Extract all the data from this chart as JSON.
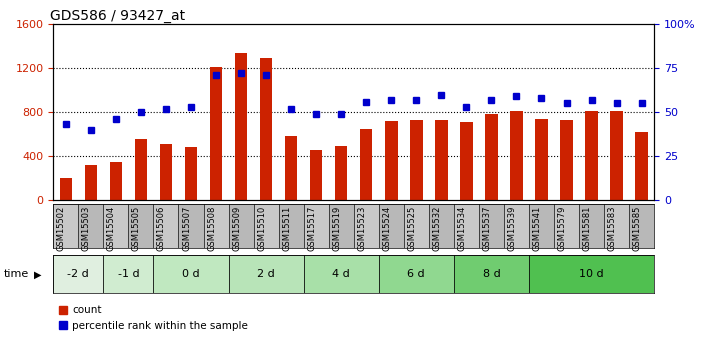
{
  "title": "GDS586 / 93427_at",
  "samples": [
    "GSM15502",
    "GSM15503",
    "GSM15504",
    "GSM15505",
    "GSM15506",
    "GSM15507",
    "GSM15508",
    "GSM15509",
    "GSM15510",
    "GSM15511",
    "GSM15517",
    "GSM15519",
    "GSM15523",
    "GSM15524",
    "GSM15525",
    "GSM15532",
    "GSM15534",
    "GSM15537",
    "GSM15539",
    "GSM15541",
    "GSM15579",
    "GSM15581",
    "GSM15583",
    "GSM15585"
  ],
  "counts": [
    200,
    320,
    350,
    560,
    510,
    480,
    1210,
    1340,
    1290,
    580,
    460,
    490,
    650,
    720,
    730,
    730,
    710,
    780,
    810,
    740,
    730,
    810,
    810,
    620
  ],
  "percentiles": [
    43,
    40,
    46,
    50,
    52,
    53,
    71,
    72,
    71,
    52,
    49,
    49,
    56,
    57,
    57,
    60,
    53,
    57,
    59,
    58,
    55,
    57,
    55,
    55
  ],
  "time_groups": [
    {
      "label": "-2 d",
      "start": 0,
      "end": 2,
      "color": "#e0efe0"
    },
    {
      "label": "-1 d",
      "start": 2,
      "end": 4,
      "color": "#d0ecd0"
    },
    {
      "label": "0 d",
      "start": 4,
      "end": 7,
      "color": "#c0e8c0"
    },
    {
      "label": "2 d",
      "start": 7,
      "end": 10,
      "color": "#b8e4b8"
    },
    {
      "label": "4 d",
      "start": 10,
      "end": 13,
      "color": "#a8e0a8"
    },
    {
      "label": "6 d",
      "start": 13,
      "end": 16,
      "color": "#90d890"
    },
    {
      "label": "8 d",
      "start": 16,
      "end": 19,
      "color": "#70cc70"
    },
    {
      "label": "10 d",
      "start": 19,
      "end": 24,
      "color": "#50c050"
    }
  ],
  "bar_color": "#cc2200",
  "dot_color": "#0000cc",
  "ylim_left": [
    0,
    1600
  ],
  "ylim_right": [
    0,
    100
  ],
  "yticks_left": [
    0,
    400,
    800,
    1200,
    1600
  ],
  "ytick_labels_left": [
    "0",
    "400",
    "800",
    "1200",
    "1600"
  ],
  "yticks_right": [
    0,
    25,
    50,
    75,
    100
  ],
  "ytick_labels_right": [
    "0",
    "25",
    "50",
    "75",
    "100%"
  ],
  "left_tick_color": "#cc2200",
  "right_tick_color": "#0000cc",
  "sample_bg_even": "#c8c8c8",
  "sample_bg_odd": "#b8b8b8",
  "grid_color": "black",
  "grid_style": ":",
  "grid_lw": 0.8,
  "grid_vals": [
    400,
    800,
    1200
  ],
  "bar_width": 0.5,
  "dot_size": 5,
  "title_fontsize": 10,
  "tick_fontsize": 8,
  "label_fontsize": 7.5,
  "time_label_fontsize": 8,
  "sample_fontsize": 6
}
